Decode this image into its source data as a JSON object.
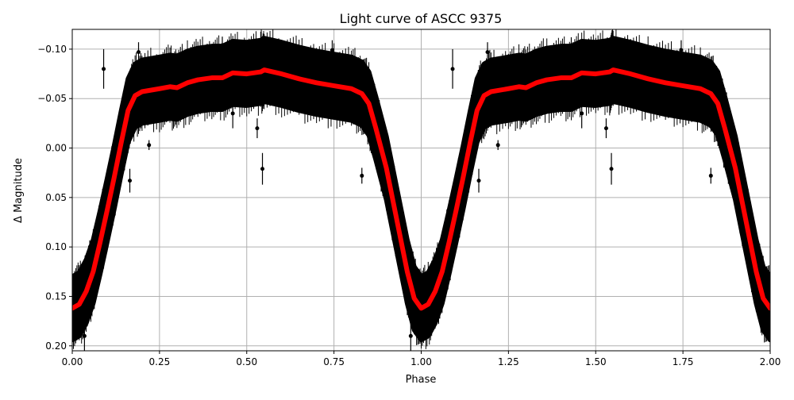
{
  "chart_data": {
    "type": "scatter",
    "title": "Light curve of ASCC 9375",
    "xlabel": "Phase",
    "ylabel": "Δ Magnitude",
    "xlim": [
      0,
      2.0
    ],
    "ylim": [
      -0.12,
      0.205
    ],
    "y_inverted": true,
    "grid": true,
    "x_ticks": [
      "0.00",
      "0.25",
      "0.50",
      "0.75",
      "1.00",
      "1.25",
      "1.50",
      "1.75",
      "2.00"
    ],
    "x_tick_values": [
      0,
      0.25,
      0.5,
      0.75,
      1.0,
      1.25,
      1.5,
      1.75,
      2.0
    ],
    "y_ticks": [
      "−0.10",
      "−0.05",
      "0.00",
      "0.05",
      "0.10",
      "0.15",
      "0.20"
    ],
    "y_tick_values": [
      -0.1,
      -0.05,
      0.0,
      0.05,
      0.1,
      0.15,
      0.2
    ],
    "colors": {
      "data": "#000000",
      "model": "#ff0000",
      "grid": "#b0b0b0"
    },
    "data_scatter_halfwidth": 0.032,
    "model": {
      "x": [
        0.0,
        0.02,
        0.04,
        0.06,
        0.08,
        0.1,
        0.12,
        0.14,
        0.16,
        0.18,
        0.2,
        0.25,
        0.28,
        0.3,
        0.33,
        0.36,
        0.4,
        0.43,
        0.46,
        0.5,
        0.54,
        0.55,
        0.6,
        0.65,
        0.7,
        0.75,
        0.8,
        0.83,
        0.85,
        0.87,
        0.9,
        0.92,
        0.94,
        0.96,
        0.98,
        1.0,
        1.02,
        1.04,
        1.06,
        1.08,
        1.1,
        1.12,
        1.14,
        1.16,
        1.18,
        1.2,
        1.25,
        1.28,
        1.3,
        1.33,
        1.36,
        1.4,
        1.43,
        1.46,
        1.5,
        1.54,
        1.55,
        1.6,
        1.65,
        1.7,
        1.75,
        1.8,
        1.83,
        1.85,
        1.87,
        1.9,
        1.92,
        1.94,
        1.96,
        1.98,
        2.0
      ],
      "y": [
        0.162,
        0.158,
        0.145,
        0.125,
        0.095,
        0.063,
        0.03,
        -0.005,
        -0.038,
        -0.053,
        -0.057,
        -0.06,
        -0.062,
        -0.061,
        -0.066,
        -0.069,
        -0.071,
        -0.071,
        -0.076,
        -0.075,
        -0.077,
        -0.079,
        -0.075,
        -0.07,
        -0.066,
        -0.063,
        -0.06,
        -0.055,
        -0.045,
        -0.02,
        0.02,
        0.055,
        0.09,
        0.125,
        0.152,
        0.162,
        0.158,
        0.145,
        0.125,
        0.095,
        0.063,
        0.03,
        -0.005,
        -0.038,
        -0.053,
        -0.057,
        -0.06,
        -0.062,
        -0.061,
        -0.066,
        -0.069,
        -0.071,
        -0.071,
        -0.076,
        -0.075,
        -0.077,
        -0.079,
        -0.075,
        -0.07,
        -0.066,
        -0.063,
        -0.06,
        -0.055,
        -0.045,
        -0.02,
        0.02,
        0.055,
        0.09,
        0.125,
        0.152,
        0.162
      ]
    },
    "points": [
      {
        "x": 0.165,
        "y": 0.033,
        "err": 0.012
      },
      {
        "x": 0.22,
        "y": -0.003,
        "err": 0.005
      },
      {
        "x": 0.545,
        "y": 0.021,
        "err": 0.016
      },
      {
        "x": 0.83,
        "y": 0.028,
        "err": 0.008
      },
      {
        "x": 0.13,
        "y": 0.025,
        "err": 0.016
      },
      {
        "x": 0.09,
        "y": -0.08,
        "err": 0.02
      },
      {
        "x": 0.19,
        "y": -0.097,
        "err": 0.01
      },
      {
        "x": 0.43,
        "y": -0.104,
        "err": 0.008
      },
      {
        "x": 0.745,
        "y": -0.099,
        "err": 0.01
      },
      {
        "x": 0.46,
        "y": -0.035,
        "err": 0.015
      },
      {
        "x": 0.53,
        "y": -0.02,
        "err": 0.01
      },
      {
        "x": 0.035,
        "y": 0.19,
        "err": 0.015
      },
      {
        "x": 1.165,
        "y": 0.033,
        "err": 0.012
      },
      {
        "x": 1.22,
        "y": -0.003,
        "err": 0.005
      },
      {
        "x": 1.545,
        "y": 0.021,
        "err": 0.016
      },
      {
        "x": 1.83,
        "y": 0.028,
        "err": 0.008
      },
      {
        "x": 1.13,
        "y": 0.025,
        "err": 0.016
      },
      {
        "x": 1.09,
        "y": -0.08,
        "err": 0.02
      },
      {
        "x": 1.19,
        "y": -0.097,
        "err": 0.01
      },
      {
        "x": 1.43,
        "y": -0.104,
        "err": 0.008
      },
      {
        "x": 1.745,
        "y": -0.099,
        "err": 0.01
      },
      {
        "x": 1.46,
        "y": -0.035,
        "err": 0.015
      },
      {
        "x": 1.53,
        "y": -0.02,
        "err": 0.01
      },
      {
        "x": 0.97,
        "y": 0.19,
        "err": 0.015
      }
    ]
  }
}
